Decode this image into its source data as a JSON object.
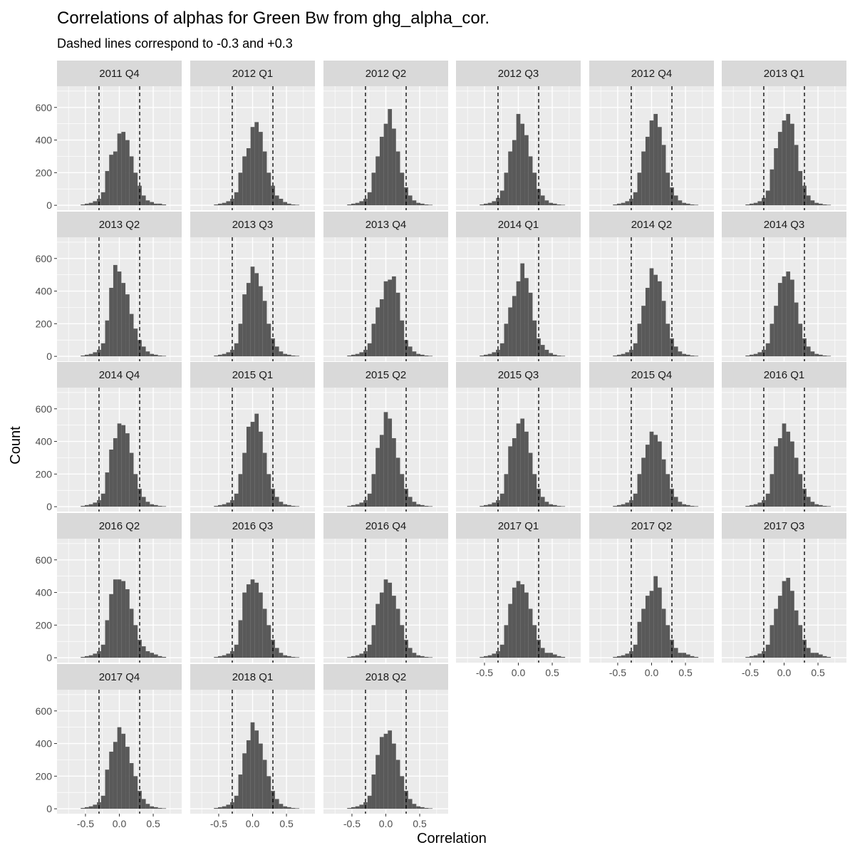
{
  "chart_data": {
    "type": "histogram-facets",
    "title": "Correlations of alphas for Green Bw from ghg_alpha_cor.",
    "subtitle": "Dashed lines correspond to -0.3 and +0.3",
    "xlabel": "Correlation",
    "ylabel": "Count",
    "xlim": [
      -0.92,
      0.92
    ],
    "ylim": [
      -30,
      730
    ],
    "x_ticks": [
      -0.5,
      0.0,
      0.5
    ],
    "x_tick_labels": [
      "-0.5",
      "0.0",
      "0.5"
    ],
    "y_ticks": [
      0,
      200,
      400,
      600
    ],
    "y_tick_labels": [
      "0",
      "200",
      "400",
      "600"
    ],
    "reference_lines": [
      -0.3,
      0.3
    ],
    "bin_centers": [
      -0.6,
      -0.54,
      -0.48,
      -0.42,
      -0.36,
      -0.3,
      -0.24,
      -0.18,
      -0.12,
      -0.06,
      0.0,
      0.06,
      0.12,
      0.18,
      0.24,
      0.3,
      0.36,
      0.42,
      0.48,
      0.54,
      0.6,
      0.66,
      0.72
    ],
    "bin_width": 0.06,
    "bar_color": "#595959",
    "panel_background": "#ebebeb",
    "strip_background": "#d9d9d9",
    "grid_color": "#ffffff",
    "ncol": 6,
    "facets": [
      {
        "label": "2011 Q4",
        "values": [
          0,
          5,
          10,
          15,
          25,
          40,
          80,
          210,
          310,
          330,
          440,
          450,
          400,
          300,
          200,
          120,
          60,
          30,
          20,
          10,
          10,
          5,
          0
        ]
      },
      {
        "label": "2012 Q1",
        "values": [
          0,
          5,
          10,
          15,
          25,
          40,
          80,
          200,
          300,
          350,
          480,
          510,
          450,
          330,
          200,
          120,
          60,
          40,
          20,
          10,
          5,
          3,
          0
        ]
      },
      {
        "label": "2012 Q2",
        "values": [
          0,
          5,
          10,
          15,
          25,
          40,
          80,
          200,
          300,
          420,
          500,
          590,
          470,
          330,
          200,
          110,
          60,
          30,
          15,
          10,
          5,
          3,
          0
        ]
      },
      {
        "label": "2012 Q3",
        "values": [
          0,
          5,
          10,
          15,
          25,
          45,
          90,
          200,
          330,
          400,
          560,
          500,
          430,
          300,
          200,
          100,
          60,
          30,
          15,
          10,
          5,
          3,
          0
        ]
      },
      {
        "label": "2012 Q4",
        "values": [
          0,
          5,
          10,
          15,
          25,
          40,
          80,
          200,
          330,
          420,
          520,
          560,
          480,
          370,
          200,
          110,
          60,
          30,
          15,
          10,
          5,
          3,
          0
        ]
      },
      {
        "label": "2013 Q1",
        "values": [
          0,
          5,
          10,
          15,
          25,
          45,
          90,
          220,
          350,
          450,
          520,
          560,
          500,
          370,
          210,
          120,
          60,
          30,
          15,
          10,
          5,
          3,
          0
        ]
      },
      {
        "label": "2013 Q2",
        "values": [
          0,
          5,
          10,
          15,
          25,
          40,
          80,
          220,
          420,
          560,
          520,
          450,
          380,
          260,
          170,
          100,
          60,
          30,
          15,
          10,
          5,
          3,
          0
        ]
      },
      {
        "label": "2013 Q3",
        "values": [
          0,
          5,
          10,
          15,
          25,
          40,
          80,
          200,
          380,
          450,
          550,
          510,
          430,
          340,
          200,
          110,
          60,
          30,
          15,
          10,
          5,
          3,
          0
        ]
      },
      {
        "label": "2013 Q4",
        "values": [
          0,
          5,
          10,
          15,
          25,
          40,
          80,
          200,
          300,
          350,
          460,
          470,
          490,
          390,
          220,
          100,
          60,
          30,
          15,
          10,
          5,
          3,
          0
        ]
      },
      {
        "label": "2014 Q1",
        "values": [
          0,
          5,
          10,
          15,
          25,
          40,
          80,
          200,
          300,
          370,
          460,
          570,
          480,
          390,
          220,
          110,
          70,
          40,
          20,
          10,
          5,
          3,
          0
        ]
      },
      {
        "label": "2014 Q2",
        "values": [
          0,
          5,
          10,
          15,
          25,
          40,
          80,
          200,
          310,
          420,
          540,
          500,
          460,
          340,
          200,
          110,
          60,
          30,
          15,
          10,
          5,
          3,
          0
        ]
      },
      {
        "label": "2014 Q3",
        "values": [
          0,
          5,
          10,
          15,
          25,
          40,
          80,
          200,
          310,
          450,
          490,
          520,
          470,
          330,
          200,
          110,
          60,
          30,
          15,
          10,
          5,
          3,
          0
        ]
      },
      {
        "label": "2014 Q4",
        "values": [
          0,
          5,
          10,
          15,
          25,
          40,
          80,
          210,
          350,
          420,
          510,
          500,
          450,
          330,
          200,
          110,
          60,
          30,
          15,
          10,
          5,
          3,
          0
        ]
      },
      {
        "label": "2015 Q1",
        "values": [
          0,
          5,
          10,
          15,
          25,
          40,
          80,
          200,
          330,
          490,
          520,
          570,
          460,
          330,
          200,
          110,
          60,
          30,
          15,
          10,
          5,
          3,
          0
        ]
      },
      {
        "label": "2015 Q2",
        "values": [
          0,
          5,
          10,
          15,
          25,
          40,
          80,
          200,
          360,
          440,
          580,
          540,
          420,
          300,
          200,
          110,
          60,
          30,
          15,
          10,
          5,
          3,
          0
        ]
      },
      {
        "label": "2015 Q3",
        "values": [
          0,
          5,
          10,
          15,
          25,
          40,
          80,
          200,
          370,
          420,
          510,
          540,
          460,
          330,
          200,
          110,
          60,
          30,
          15,
          10,
          5,
          3,
          0
        ]
      },
      {
        "label": "2015 Q4",
        "values": [
          0,
          5,
          10,
          15,
          25,
          40,
          80,
          200,
          300,
          380,
          460,
          440,
          400,
          290,
          200,
          110,
          60,
          30,
          15,
          10,
          5,
          3,
          0
        ]
      },
      {
        "label": "2016 Q1",
        "values": [
          0,
          5,
          10,
          15,
          25,
          40,
          80,
          200,
          370,
          420,
          510,
          460,
          400,
          300,
          200,
          110,
          60,
          30,
          15,
          10,
          5,
          3,
          0
        ]
      },
      {
        "label": "2016 Q2",
        "values": [
          0,
          5,
          10,
          15,
          25,
          40,
          80,
          230,
          390,
          480,
          480,
          470,
          420,
          300,
          200,
          110,
          70,
          40,
          30,
          20,
          10,
          5,
          0
        ]
      },
      {
        "label": "2016 Q3",
        "values": [
          0,
          5,
          10,
          15,
          25,
          40,
          80,
          230,
          400,
          450,
          480,
          460,
          400,
          300,
          200,
          110,
          60,
          30,
          15,
          10,
          5,
          3,
          0
        ]
      },
      {
        "label": "2016 Q4",
        "values": [
          0,
          5,
          10,
          15,
          25,
          40,
          80,
          200,
          330,
          400,
          480,
          460,
          380,
          300,
          200,
          110,
          60,
          30,
          15,
          10,
          5,
          3,
          0
        ]
      },
      {
        "label": "2017 Q1",
        "values": [
          0,
          5,
          10,
          15,
          25,
          40,
          80,
          200,
          330,
          430,
          470,
          450,
          400,
          300,
          200,
          110,
          60,
          30,
          30,
          20,
          10,
          5,
          0
        ]
      },
      {
        "label": "2017 Q2",
        "values": [
          0,
          5,
          10,
          15,
          25,
          40,
          80,
          220,
          300,
          380,
          410,
          500,
          430,
          300,
          200,
          110,
          60,
          30,
          30,
          20,
          10,
          5,
          0
        ]
      },
      {
        "label": "2017 Q3",
        "values": [
          0,
          5,
          10,
          15,
          25,
          40,
          80,
          200,
          300,
          380,
          470,
          490,
          410,
          290,
          200,
          110,
          60,
          30,
          30,
          20,
          10,
          5,
          0
        ]
      },
      {
        "label": "2017 Q4",
        "values": [
          0,
          5,
          10,
          15,
          25,
          40,
          80,
          240,
          350,
          410,
          500,
          460,
          380,
          280,
          200,
          110,
          60,
          30,
          15,
          10,
          5,
          3,
          0
        ]
      },
      {
        "label": "2018 Q1",
        "values": [
          0,
          5,
          10,
          15,
          25,
          40,
          80,
          210,
          340,
          420,
          530,
          480,
          400,
          300,
          200,
          110,
          60,
          30,
          15,
          10,
          5,
          3,
          0
        ]
      },
      {
        "label": "2018 Q2",
        "values": [
          0,
          5,
          10,
          15,
          25,
          40,
          80,
          210,
          330,
          440,
          460,
          480,
          400,
          300,
          200,
          110,
          60,
          30,
          15,
          10,
          5,
          3,
          0
        ]
      }
    ]
  }
}
